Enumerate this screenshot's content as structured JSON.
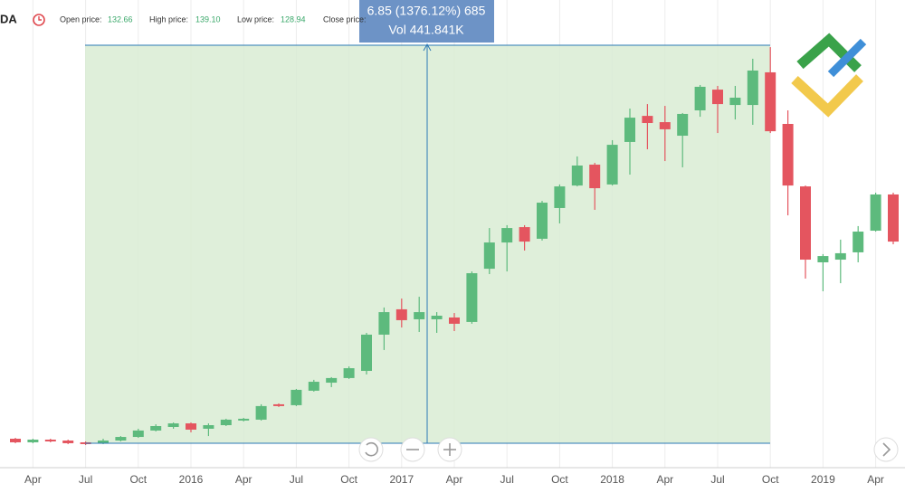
{
  "header": {
    "ticker": "DA",
    "open_label": "Open price:",
    "open": "132.66",
    "high_label": "High price:",
    "high": "139.10",
    "low_label": "Low price:",
    "low": "128.94",
    "close_label": "Close price:"
  },
  "measure": {
    "change": "6.85 (1376.12%) 685",
    "volume": "Vol 441.841K"
  },
  "chart_data": {
    "type": "candlestick",
    "categories": [
      null,
      "Apr",
      null,
      null,
      "Jul",
      null,
      null,
      "Oct",
      null,
      null,
      "2016",
      null,
      null,
      "Apr",
      null,
      null,
      "Jul",
      null,
      null,
      "Oct",
      null,
      null,
      "2017",
      null,
      null,
      "Apr",
      null,
      null,
      "Jul",
      null,
      null,
      "Oct",
      null,
      null,
      "2018",
      null,
      null,
      "Apr",
      null,
      null,
      "Jul",
      null,
      null,
      "Oct",
      null,
      null,
      "2019",
      null,
      null,
      "Apr",
      null
    ],
    "open": [
      22.4,
      20.0,
      21.8,
      21.2,
      20.0,
      19.4,
      21.2,
      23.6,
      27.9,
      30.3,
      32.7,
      29.1,
      31.5,
      34.6,
      35.2,
      45.5,
      44.9,
      54.6,
      60.0,
      63.1,
      67.9,
      92.2,
      109.2,
      102.5,
      102.5,
      103.7,
      100.7,
      136.4,
      154.0,
      164.3,
      156.5,
      177.1,
      192.2,
      206.2,
      192.9,
      221.4,
      238.9,
      234.7,
      225.6,
      242.6,
      256.5,
      246.2,
      246.2,
      268.1,
      233.5,
      191.6,
      140.7,
      142.5,
      147.4,
      161.9,
      186.2
    ],
    "high": [
      23.0,
      22.4,
      22.4,
      21.8,
      20.6,
      22.4,
      24.2,
      29.1,
      32.1,
      33.3,
      33.3,
      32.7,
      35.8,
      36.4,
      45.5,
      46.1,
      55.8,
      61.9,
      63.7,
      70.9,
      93.4,
      110.4,
      116.4,
      117.6,
      107.3,
      106.7,
      134.6,
      163.7,
      165.6,
      165.6,
      181.9,
      192.9,
      211.7,
      207.4,
      222.6,
      243.8,
      246.8,
      245.6,
      240.8,
      259.6,
      259.0,
      259.0,
      277.2,
      285.0,
      242.6,
      192.2,
      146.2,
      155.9,
      165.0,
      187.4,
      187.4
    ],
    "low": [
      19.4,
      19.4,
      20.0,
      18.8,
      18.2,
      18.8,
      20.6,
      23.0,
      27.3,
      29.1,
      26.7,
      24.2,
      30.9,
      34.0,
      34.6,
      43.7,
      44.3,
      54.0,
      57.0,
      62.5,
      65.5,
      81.9,
      97.0,
      94.0,
      93.4,
      94.6,
      99.5,
      132.8,
      134.6,
      148.6,
      155.3,
      166.8,
      191.6,
      175.9,
      192.2,
      199.5,
      216.5,
      208.6,
      204.4,
      238.3,
      227.4,
      236.5,
      232.9,
      227.4,
      172.2,
      129.8,
      121.3,
      126.7,
      140.7,
      161.3,
      152.8
    ],
    "close": [
      20.0,
      21.8,
      20.6,
      19.4,
      18.8,
      21.2,
      23.6,
      27.9,
      30.9,
      32.7,
      28.5,
      31.5,
      35.2,
      35.8,
      44.3,
      44.3,
      55.2,
      60.6,
      63.1,
      69.7,
      92.2,
      107.3,
      101.9,
      107.3,
      104.9,
      99.5,
      133.4,
      154.0,
      163.7,
      154.6,
      180.7,
      191.6,
      205.6,
      190.4,
      219.5,
      237.7,
      234.1,
      229.9,
      240.2,
      258.4,
      246.8,
      251.1,
      269.3,
      228.6,
      192.2,
      142.5,
      144.9,
      146.8,
      161.3,
      186.2,
      154.6
    ],
    "up_color": "#5dba7d",
    "down_color": "#e4555f",
    "ylim": [
      3.0,
      316.6
    ],
    "grid": true
  }
}
